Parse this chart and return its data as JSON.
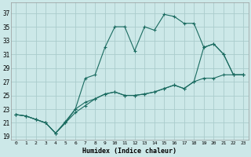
{
  "xlabel": "Humidex (Indice chaleur)",
  "background_color": "#cce8e8",
  "grid_color": "#aacccc",
  "line_color": "#1a6b60",
  "xlim": [
    -0.5,
    23.5
  ],
  "ylim": [
    18.5,
    38.5
  ],
  "xticks": [
    0,
    1,
    2,
    3,
    4,
    5,
    6,
    7,
    8,
    9,
    10,
    11,
    12,
    13,
    14,
    15,
    16,
    17,
    18,
    19,
    20,
    21,
    22,
    23
  ],
  "yticks": [
    19,
    21,
    23,
    25,
    27,
    29,
    31,
    33,
    35,
    37
  ],
  "line1_x": [
    0,
    1,
    2,
    3,
    4,
    5,
    6,
    7,
    8,
    9,
    10,
    11,
    12,
    13,
    14,
    15,
    16,
    17,
    18,
    19,
    20,
    21,
    22,
    23
  ],
  "line1_y": [
    22.2,
    22.0,
    21.5,
    21.0,
    19.5,
    21.0,
    23.0,
    27.5,
    28.0,
    32.0,
    35.0,
    35.0,
    31.5,
    35.0,
    34.5,
    36.8,
    36.5,
    35.5,
    35.5,
    32.0,
    32.5,
    31.0,
    28.0,
    28.0
  ],
  "line2_x": [
    0,
    1,
    2,
    3,
    4,
    5,
    6,
    7,
    8,
    9,
    10,
    11,
    12,
    13,
    14,
    15,
    16,
    17,
    18,
    19,
    20,
    21,
    22,
    23
  ],
  "line2_y": [
    22.2,
    22.0,
    21.5,
    21.0,
    19.5,
    21.2,
    23.0,
    24.0,
    24.5,
    25.2,
    25.5,
    25.0,
    25.0,
    25.2,
    25.5,
    26.0,
    26.5,
    26.0,
    27.0,
    27.5,
    27.5,
    28.0,
    28.0,
    28.0
  ],
  "line3_x": [
    0,
    1,
    2,
    3,
    4,
    5,
    6,
    7,
    8,
    9,
    10,
    11,
    12,
    13,
    14,
    15,
    16,
    17,
    18,
    19,
    20,
    21,
    22,
    23
  ],
  "line3_y": [
    22.2,
    22.0,
    21.5,
    21.0,
    19.5,
    21.0,
    22.5,
    23.5,
    24.5,
    25.2,
    25.5,
    25.0,
    25.0,
    25.2,
    25.5,
    26.0,
    26.5,
    26.0,
    27.0,
    32.0,
    32.5,
    31.0,
    28.0,
    28.0
  ]
}
